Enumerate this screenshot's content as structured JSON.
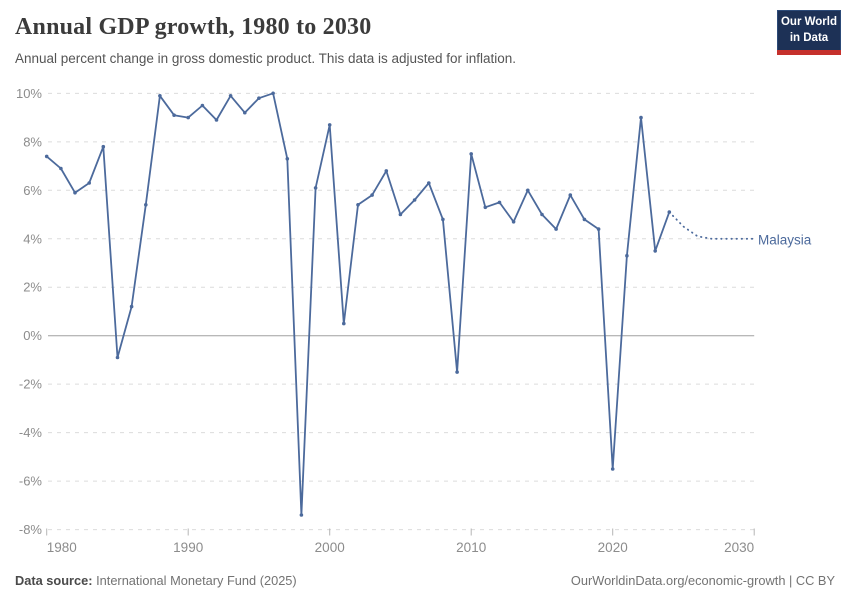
{
  "header": {
    "title": "Annual GDP growth, 1980 to 2030",
    "subtitle": "Annual percent change in gross domestic product. This data is adjusted for inflation.",
    "logo": {
      "line1": "Our World",
      "line2": "in Data"
    }
  },
  "footer": {
    "source_label": "Data source:",
    "source_value": " International Monetary Fund (2025)",
    "right_text": "OurWorldinData.org/economic-growth | CC BY"
  },
  "colors": {
    "line": "#4c6a9c",
    "entity_label": "#4c6a9c",
    "grid": "#dcdcdc",
    "zero_line": "#a0a0a0",
    "tick_mark": "#b5b5b5",
    "axis_text": "#8c8c8c",
    "logo_navy": "#1d3156",
    "logo_red": "#c5302c"
  },
  "chart_data": {
    "type": "line",
    "title": "Annual GDP growth, 1980 to 2030",
    "subtitle": "Annual percent change in gross domestic product. This data is adjusted for inflation.",
    "series_label": "Malaysia",
    "x": [
      1980,
      1981,
      1982,
      1983,
      1984,
      1985,
      1986,
      1987,
      1988,
      1989,
      1990,
      1991,
      1992,
      1993,
      1994,
      1995,
      1996,
      1997,
      1998,
      1999,
      2000,
      2001,
      2002,
      2003,
      2004,
      2005,
      2006,
      2007,
      2008,
      2009,
      2010,
      2011,
      2012,
      2013,
      2014,
      2015,
      2016,
      2017,
      2018,
      2019,
      2020,
      2021,
      2022,
      2023,
      2024
    ],
    "values": [
      7.4,
      6.9,
      5.9,
      6.3,
      7.8,
      -0.9,
      1.2,
      5.4,
      9.9,
      9.1,
      9.0,
      9.5,
      8.9,
      9.9,
      9.2,
      9.8,
      10.0,
      7.3,
      -7.4,
      6.1,
      8.7,
      0.5,
      5.4,
      5.8,
      6.8,
      5.0,
      5.6,
      6.3,
      4.8,
      -1.5,
      7.5,
      5.3,
      5.5,
      4.7,
      6.0,
      5.0,
      4.4,
      5.8,
      4.8,
      4.4,
      -5.5,
      3.3,
      9.0,
      3.5,
      5.1
    ],
    "projection": {
      "x": [
        2024,
        2025,
        2026,
        2027,
        2028,
        2029,
        2030
      ],
      "values": [
        5.1,
        4.5,
        4.1,
        4.0,
        4.0,
        4.0,
        4.0
      ],
      "style": "dotted"
    },
    "xlim": [
      1980,
      2030
    ],
    "ylim": [
      -8,
      10
    ],
    "yticks": [
      10,
      8,
      6,
      4,
      2,
      0,
      -2,
      -4,
      -6,
      -8
    ],
    "ytick_suffix": "%",
    "xticks": [
      1980,
      1990,
      2000,
      2010,
      2020,
      2030
    ],
    "grid": "horizontal-dashed",
    "legend_position": "end-of-line-label",
    "line_color": "#4c6a9c"
  }
}
